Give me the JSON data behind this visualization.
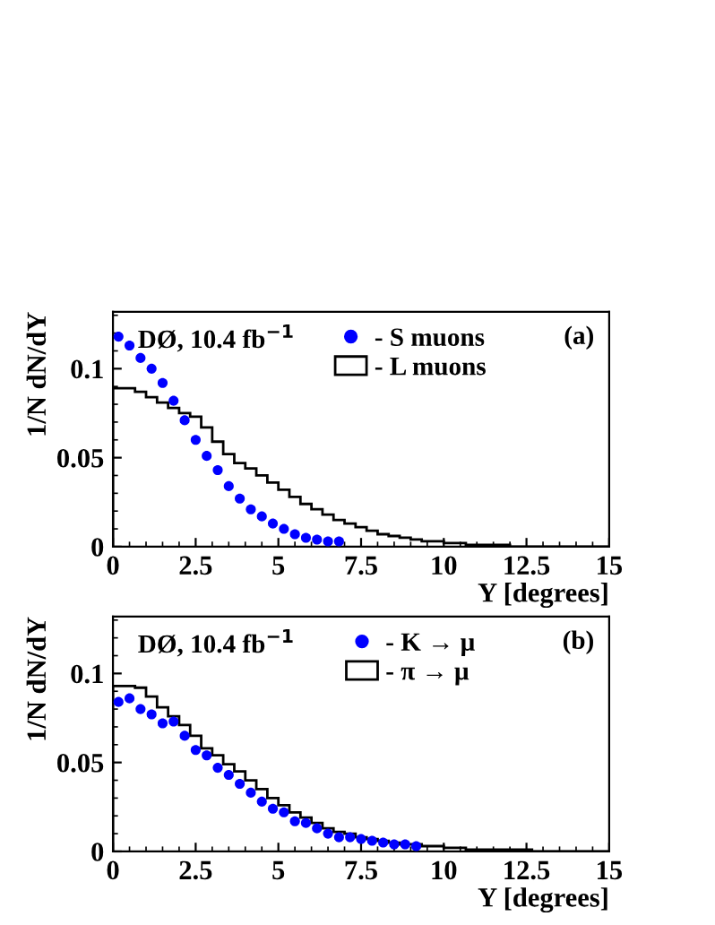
{
  "chart_data": [
    {
      "type": "histogram",
      "xlabel": "Y [degrees]",
      "ylabel": "1/N dN/dY",
      "annotations": [
        "DØ, 10.4 fb$^{−1}$",
        "(a)"
      ],
      "bins": [
        0,
        0.333,
        0.667,
        1,
        1.333,
        1.667,
        2,
        2.333,
        2.667,
        3,
        3.333,
        3.667,
        4,
        4.333,
        4.667,
        5,
        5.333,
        5.667,
        6,
        6.333,
        6.667,
        7,
        7.333,
        7.667,
        8,
        8.333,
        8.667,
        9,
        9.333,
        9.667,
        10,
        10.333,
        10.667,
        11,
        11.333,
        11.667,
        12,
        12.333,
        12.667,
        13,
        13.333,
        13.667,
        14,
        14.333,
        14.667,
        15
      ],
      "series": [
        {
          "name": "- S muons",
          "type": "scatter",
          "color": "#0000ff",
          "x": [
            0.167,
            0.5,
            0.833,
            1.167,
            1.5,
            1.833,
            2.167,
            2.5,
            2.833,
            3.167,
            3.5,
            3.833,
            4.167,
            4.5,
            4.833,
            5.167,
            5.5,
            5.833,
            6.167,
            6.5,
            6.833
          ],
          "values": [
            0.118,
            0.113,
            0.106,
            0.1,
            0.092,
            0.082,
            0.071,
            0.06,
            0.051,
            0.043,
            0.034,
            0.027,
            0.021,
            0.017,
            0.013,
            0.01,
            0.007,
            0.005,
            0.004,
            0.003,
            0.003
          ]
        },
        {
          "name": "- L muons",
          "color": "#000000",
          "values": [
            0.089,
            0.089,
            0.087,
            0.084,
            0.081,
            0.078,
            0.075,
            0.073,
            0.067,
            0.059,
            0.052,
            0.047,
            0.044,
            0.04,
            0.036,
            0.032,
            0.028,
            0.024,
            0.021,
            0.018,
            0.015,
            0.013,
            0.011,
            0.009,
            0.007,
            0.006,
            0.005,
            0.004,
            0.003,
            0.003,
            0.002,
            0.002,
            0.001,
            0.001,
            0.001,
            0.001,
            0,
            0,
            0,
            0,
            0,
            0,
            0,
            0,
            0
          ]
        }
      ],
      "xlim": [
        0,
        15
      ],
      "xticks": [
        0,
        {
          "value": 2.5,
          "label": "2.5"
        },
        5,
        {
          "value": 7.5,
          "label": "7.5"
        },
        10,
        {
          "value": 12.5,
          "label": "12.5"
        },
        15
      ],
      "ylim": [
        0,
        0.132
      ],
      "yticks": [
        0,
        0.05,
        0.1
      ],
      "legend": "top",
      "marker": "circle"
    },
    {
      "type": "histogram",
      "xlabel": "Y [degrees]",
      "ylabel": "1/N dN/dY",
      "annotations": [
        "DØ, 10.4 fb$^{−1}$",
        "(b)"
      ],
      "bins": [
        0,
        0.333,
        0.667,
        1,
        1.333,
        1.667,
        2,
        2.333,
        2.667,
        3,
        3.333,
        3.667,
        4,
        4.333,
        4.667,
        5,
        5.333,
        5.667,
        6,
        6.333,
        6.667,
        7,
        7.333,
        7.667,
        8,
        8.333,
        8.667,
        9,
        9.333,
        9.667,
        10,
        10.333,
        10.667,
        11,
        11.333,
        11.667,
        12,
        12.333,
        12.667,
        13,
        13.333,
        13.667,
        14,
        14.333,
        14.667,
        15
      ],
      "series": [
        {
          "name": "- K → μ",
          "type": "scatter",
          "color": "#0000ff",
          "x": [
            0.167,
            0.5,
            0.833,
            1.167,
            1.5,
            1.833,
            2.167,
            2.5,
            2.833,
            3.167,
            3.5,
            3.833,
            4.167,
            4.5,
            4.833,
            5.167,
            5.5,
            5.833,
            6.167,
            6.5,
            6.833,
            7.167,
            7.5,
            7.833,
            8.167,
            8.5,
            8.833,
            9.167
          ],
          "values": [
            0.084,
            0.086,
            0.08,
            0.077,
            0.072,
            0.073,
            0.065,
            0.057,
            0.054,
            0.047,
            0.043,
            0.038,
            0.033,
            0.028,
            0.024,
            0.022,
            0.017,
            0.016,
            0.013,
            0.01,
            0.008,
            0.008,
            0.007,
            0.006,
            0.005,
            0.004,
            0.004,
            0.003
          ]
        },
        {
          "name": "- π → μ",
          "color": "#000000",
          "values": [
            0.093,
            0.093,
            0.092,
            0.087,
            0.081,
            0.076,
            0.071,
            0.065,
            0.058,
            0.054,
            0.049,
            0.045,
            0.04,
            0.035,
            0.03,
            0.026,
            0.022,
            0.019,
            0.016,
            0.013,
            0.011,
            0.01,
            0.008,
            0.007,
            0.006,
            0.005,
            0.004,
            0.004,
            0.003,
            0.003,
            0.002,
            0.002,
            0.001,
            0.001,
            0.001,
            0.001,
            0.001,
            0.001,
            0,
            0,
            0,
            0,
            0,
            0,
            0
          ]
        }
      ],
      "xlim": [
        0,
        15
      ],
      "xticks": [
        0,
        {
          "value": 2.5,
          "label": "2.5"
        },
        5,
        {
          "value": 7.5,
          "label": "7.5"
        },
        10,
        {
          "value": 12.5,
          "label": "12.5"
        },
        15
      ],
      "ylim": [
        0,
        0.132
      ],
      "yticks": [
        0,
        0.05,
        0.1
      ],
      "legend": "top",
      "marker": "circle"
    }
  ]
}
